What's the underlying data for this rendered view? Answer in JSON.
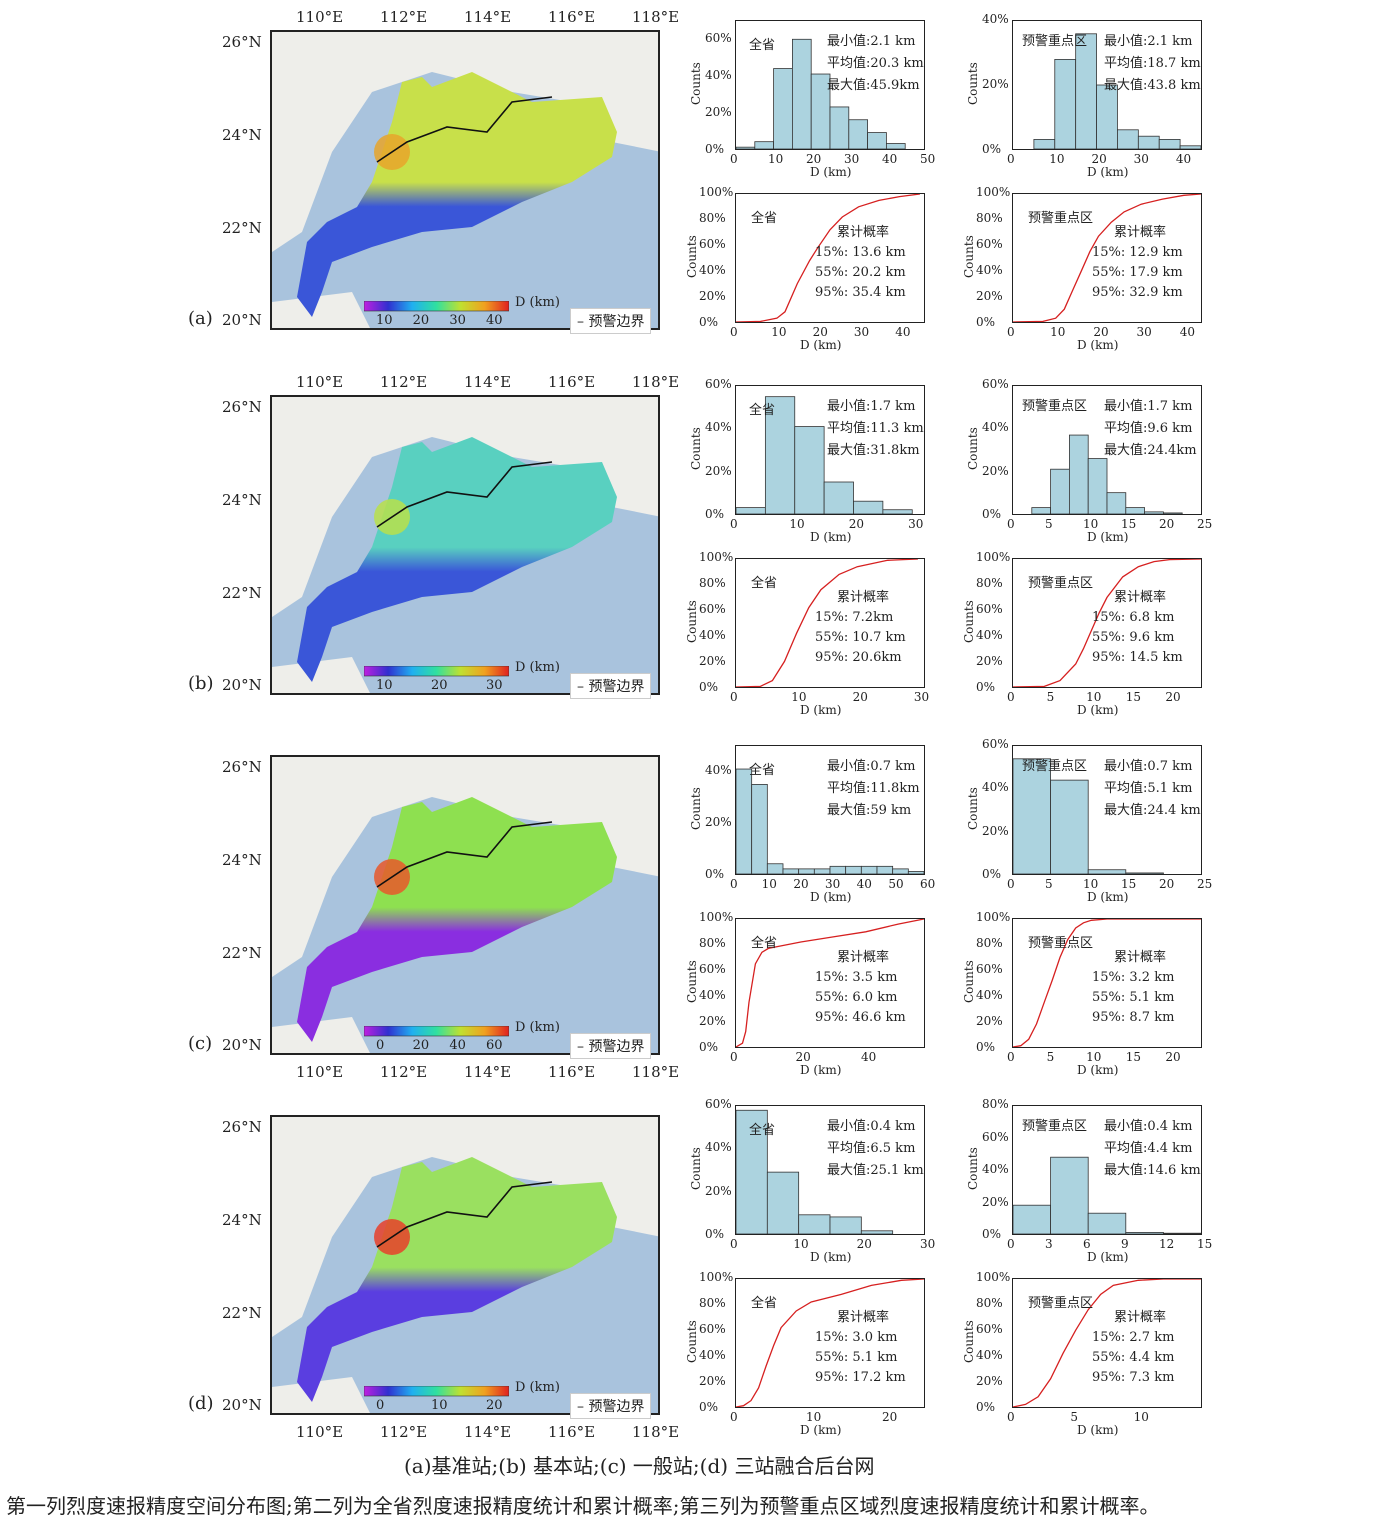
{
  "rows": [
    {
      "panel": "(a)",
      "colorbar": {
        "ticks": [
          "10",
          "20",
          "30",
          "40"
        ],
        "unit": "D (km)",
        "palette": "rainbow"
      },
      "boundary_legend": "预警边界",
      "map_palette": {
        "north": "#c8e04a",
        "south": "#3a56d8",
        "hot": "#e8a52a"
      },
      "province": {
        "title": "全省",
        "stats": [
          "最小值:2.1 km",
          "平均值:20.3 km",
          "最大值:45.9km"
        ],
        "hist": {
          "type": "bar",
          "bins": [
            0,
            5,
            10,
            15,
            20,
            25,
            30,
            35,
            40,
            45
          ],
          "bin_width": 5,
          "values": [
            1,
            4,
            44,
            60,
            41,
            23,
            16,
            9,
            3
          ],
          "ylim": [
            0,
            70
          ],
          "yticks": [
            "0%",
            "20%",
            "40%",
            "60%"
          ],
          "xticks": [
            "0",
            "10",
            "20",
            "30",
            "40",
            "50"
          ],
          "xmax": 50
        },
        "cdf": {
          "type": "line",
          "x": [
            0,
            6,
            10,
            12,
            15,
            18,
            20,
            23,
            26,
            30,
            35,
            40,
            45
          ],
          "y": [
            0,
            0.5,
            3,
            8,
            30,
            48,
            58,
            72,
            82,
            90,
            95,
            98,
            100
          ],
          "xticks": [
            "0",
            "10",
            "20",
            "30",
            "40"
          ],
          "xmax": 46,
          "yticks": [
            "0%",
            "20%",
            "40%",
            "60%",
            "80%",
            "100%"
          ],
          "legend_title": "累计概率",
          "percentiles": [
            "15%: 13.6 km",
            "55%: 20.2 km",
            "95%: 35.4 km"
          ]
        }
      },
      "warning": {
        "title": "预警重点区",
        "stats": [
          "最小值:2.1 km",
          "平均值:18.7 km",
          "最大值:43.8 km"
        ],
        "hist": {
          "type": "bar",
          "bins": [
            0,
            5,
            10,
            15,
            20,
            25,
            30,
            35,
            40,
            45
          ],
          "bin_width": 5,
          "values": [
            0,
            3,
            28,
            36,
            20,
            6,
            4,
            3,
            1
          ],
          "ylim": [
            0,
            40
          ],
          "yticks": [
            "0%",
            "20%",
            "40%"
          ],
          "xticks": [
            "0",
            "10",
            "20",
            "30",
            "40"
          ],
          "xmax": 45
        },
        "cdf": {
          "type": "line",
          "x": [
            0,
            7,
            10,
            12,
            14,
            16,
            18,
            20,
            23,
            26,
            30,
            35,
            40,
            44
          ],
          "y": [
            0,
            0.5,
            3,
            10,
            25,
            40,
            55,
            67,
            78,
            86,
            92,
            96,
            99,
            100
          ],
          "xticks": [
            "0",
            "10",
            "20",
            "30",
            "40"
          ],
          "xmax": 44,
          "yticks": [
            "0%",
            "20%",
            "40%",
            "60%",
            "80%",
            "100%"
          ],
          "legend_title": "累计概率",
          "percentiles": [
            "15%: 12.9 km",
            "55%: 17.9 km",
            "95%: 32.9 km"
          ]
        }
      }
    },
    {
      "panel": "(b)",
      "colorbar": {
        "ticks": [
          "10",
          "20",
          "30"
        ],
        "unit": "D (km)",
        "palette": "rainbow"
      },
      "boundary_legend": "预警边界",
      "map_palette": {
        "north": "#59d0c0",
        "south": "#3a56d8",
        "hot": "#b8e04a"
      },
      "province": {
        "title": "全省",
        "stats": [
          "最小值:1.7 km",
          "平均值:11.3 km",
          "最大值:31.8km"
        ],
        "hist": {
          "type": "bar",
          "bins": [
            0,
            5,
            10,
            15,
            20,
            25,
            30
          ],
          "bin_width": 5,
          "values": [
            3,
            55,
            41,
            15,
            6,
            2
          ],
          "ylim": [
            0,
            60
          ],
          "yticks": [
            "0%",
            "20%",
            "40%",
            "60%"
          ],
          "xticks": [
            "0",
            "10",
            "20",
            "30"
          ],
          "xmax": 32
        },
        "cdf": {
          "type": "line",
          "x": [
            0,
            4,
            6,
            8,
            10,
            12,
            14,
            17,
            20,
            25,
            30
          ],
          "y": [
            0,
            0.5,
            5,
            20,
            42,
            62,
            76,
            88,
            94,
            99,
            100
          ],
          "xticks": [
            "0",
            "10",
            "20",
            "30"
          ],
          "xmax": 31,
          "yticks": [
            "0%",
            "20%",
            "40%",
            "60%",
            "80%",
            "100%"
          ],
          "legend_title": "累计概率",
          "percentiles": [
            "15%: 7.2km",
            "55%: 10.7 km",
            "95%: 20.6km"
          ]
        }
      },
      "warning": {
        "title": "预警重点区",
        "stats": [
          "最小值:1.7 km",
          "平均值:9.6 km",
          "最大值:24.4km"
        ],
        "hist": {
          "type": "bar",
          "bins": [
            0,
            2.5,
            5,
            7.5,
            10,
            12.5,
            15,
            17.5,
            20,
            22.5,
            25
          ],
          "bin_width": 2.5,
          "values": [
            0,
            3,
            21,
            37,
            26,
            10,
            3,
            1,
            0.5,
            0
          ],
          "ylim": [
            0,
            60
          ],
          "yticks": [
            "0%",
            "20%",
            "40%",
            "60%"
          ],
          "xticks": [
            "0",
            "5",
            "10",
            "15",
            "20",
            "25"
          ],
          "xmax": 25
        },
        "cdf": {
          "type": "line",
          "x": [
            0,
            4,
            6,
            8,
            9,
            10,
            11,
            12,
            14,
            16,
            18,
            20,
            24
          ],
          "y": [
            0,
            0.5,
            5,
            18,
            30,
            44,
            58,
            70,
            86,
            94,
            98,
            99.5,
            100
          ],
          "xticks": [
            "0",
            "5",
            "10",
            "15",
            "20"
          ],
          "xmax": 24,
          "yticks": [
            "0%",
            "20%",
            "40%",
            "60%",
            "80%",
            "100%"
          ],
          "legend_title": "累计概率",
          "percentiles": [
            "15%: 6.8 km",
            "55%: 9.6 km",
            "95%: 14.5 km"
          ]
        }
      }
    },
    {
      "panel": "(c)",
      "colorbar": {
        "ticks": [
          "0",
          "20",
          "40",
          "60"
        ],
        "unit": "D (km)",
        "palette": "rainbow"
      },
      "boundary_legend": "预警边界",
      "map_palette": {
        "north": "#8ee050",
        "south": "#8a2ee0",
        "hot": "#e8582a"
      },
      "province": {
        "title": "全省",
        "stats": [
          "最小值:0.7 km",
          "平均值:11.8km",
          "最大值:59 km"
        ],
        "hist": {
          "type": "bar",
          "bins": [
            0,
            5,
            10,
            15,
            20,
            25,
            30,
            35,
            40,
            45,
            50,
            55,
            60
          ],
          "bin_width": 5,
          "values": [
            41,
            35,
            4,
            2,
            2,
            2,
            3,
            3,
            3,
            3,
            2,
            1
          ],
          "ylim": [
            0,
            50
          ],
          "yticks": [
            "0%",
            "20%",
            "40%"
          ],
          "xticks": [
            "0",
            "10",
            "20",
            "30",
            "40",
            "50",
            "60"
          ],
          "xmax": 60
        },
        "cdf": {
          "type": "line",
          "x": [
            0,
            2,
            3,
            4,
            6,
            8,
            10,
            20,
            30,
            40,
            50,
            58
          ],
          "y": [
            0,
            3,
            12,
            35,
            65,
            74,
            77,
            82,
            86,
            90,
            96,
            100
          ],
          "xticks": [
            "0",
            "20",
            "40"
          ],
          "xmax": 58,
          "yticks": [
            "0%",
            "20%",
            "40%",
            "60%",
            "80%",
            "100%"
          ],
          "legend_title": "累计概率",
          "percentiles": [
            "15%: 3.5 km",
            "55%: 6.0 km",
            "95%: 46.6 km"
          ]
        }
      },
      "warning": {
        "title": "预警重点区",
        "stats": [
          "最小值:0.7 km",
          "平均值:5.1 km",
          "最大值:24.4 km"
        ],
        "hist": {
          "type": "bar",
          "bins": [
            0,
            5,
            10,
            15,
            20,
            25
          ],
          "bin_width": 5,
          "values": [
            54,
            44,
            2,
            0.5,
            0
          ],
          "ylim": [
            0,
            60
          ],
          "yticks": [
            "0%",
            "20%",
            "40%",
            "60%"
          ],
          "xticks": [
            "0",
            "5",
            "10",
            "15",
            "20",
            "25"
          ],
          "xmax": 25
        },
        "cdf": {
          "type": "line",
          "x": [
            0,
            1,
            2,
            3,
            4,
            5,
            6,
            7,
            8,
            9,
            10,
            12,
            15,
            24
          ],
          "y": [
            0,
            1,
            6,
            18,
            35,
            52,
            70,
            84,
            93,
            97,
            99,
            100,
            100,
            100
          ],
          "xticks": [
            "0",
            "5",
            "10",
            "15",
            "20"
          ],
          "xmax": 24,
          "yticks": [
            "0%",
            "20%",
            "40%",
            "60%",
            "80%",
            "100%"
          ],
          "legend_title": "累计概率",
          "percentiles": [
            "15%: 3.2 km",
            "55%: 5.1 km",
            "95%: 8.7 km"
          ]
        }
      }
    },
    {
      "panel": "(d)",
      "colorbar": {
        "ticks": [
          "0",
          "10",
          "20"
        ],
        "unit": "D (km)",
        "palette": "rainbow"
      },
      "boundary_legend": "预警边界",
      "map_palette": {
        "north": "#9ae060",
        "south": "#5a3ee0",
        "hot": "#e8402a"
      },
      "province": {
        "title": "全省",
        "stats": [
          "最小值:0.4 km",
          "平均值:6.5 km",
          "最大值:25.1 km"
        ],
        "hist": {
          "type": "bar",
          "bins": [
            0,
            5,
            10,
            15,
            20,
            25,
            30
          ],
          "bin_width": 5,
          "values": [
            58,
            29,
            9,
            8,
            1.5,
            0
          ],
          "ylim": [
            0,
            60
          ],
          "yticks": [
            "0%",
            "20%",
            "40%",
            "60%"
          ],
          "xticks": [
            "0",
            "10",
            "20",
            "30"
          ],
          "xmax": 30
        },
        "cdf": {
          "type": "line",
          "x": [
            0,
            1,
            2,
            3,
            4,
            5,
            6,
            8,
            10,
            14,
            18,
            22,
            25
          ],
          "y": [
            0,
            1,
            5,
            15,
            32,
            48,
            62,
            75,
            82,
            88,
            95,
            99,
            100
          ],
          "xticks": [
            "0",
            "10",
            "20"
          ],
          "xmax": 25,
          "yticks": [
            "0%",
            "20%",
            "40%",
            "60%",
            "80%",
            "100%"
          ],
          "legend_title": "累计概率",
          "percentiles": [
            "15%: 3.0 km",
            "55%: 5.1 km",
            "95%: 17.2 km"
          ]
        }
      },
      "warning": {
        "title": "预警重点区",
        "stats": [
          "最小值:0.4 km",
          "平均值:4.4 km",
          "最大值:14.6 km"
        ],
        "hist": {
          "type": "bar",
          "bins": [
            0,
            3,
            6,
            9,
            12,
            15
          ],
          "bin_width": 3,
          "values": [
            18,
            48,
            13,
            1,
            0.5
          ],
          "ylim": [
            0,
            80
          ],
          "yticks": [
            "0%",
            "20%",
            "40%",
            "60%",
            "80%"
          ],
          "xticks": [
            "0",
            "3",
            "6",
            "9",
            "12",
            "15"
          ],
          "xmax": 15
        },
        "cdf": {
          "type": "line",
          "x": [
            0,
            1,
            2,
            3,
            4,
            5,
            6,
            7,
            8,
            10,
            12,
            15
          ],
          "y": [
            0,
            2,
            8,
            22,
            42,
            60,
            76,
            88,
            95,
            99,
            100,
            100
          ],
          "xticks": [
            "0",
            "5",
            "10"
          ],
          "xmax": 15,
          "yticks": [
            "0%",
            "20%",
            "40%",
            "60%",
            "80%",
            "100%"
          ],
          "legend_title": "累计概率",
          "percentiles": [
            "15%: 2.7 km",
            "55%: 4.4 km",
            "95%: 7.3 km"
          ]
        }
      }
    }
  ],
  "axis": {
    "ylabel": "Counts",
    "xlabel": "D (km)",
    "lat_ticks": [
      "26°N",
      "24°N",
      "22°N",
      "20°N"
    ],
    "lon_ticks": [
      "110°E",
      "112°E",
      "114°E",
      "116°E",
      "118°E"
    ]
  },
  "caption": "(a)基准站;(b) 基本站;(c) 一般站;(d) 三站融合后台网",
  "note": "第一列烈度速报精度空间分布图;第二列为全省烈度速报精度统计和累计概率;第三列为预警重点区域烈度速报精度统计和累计概率。",
  "colors": {
    "bar_fill": "#acd3df",
    "cdf_line": "#d62020",
    "ocean": "#a9c3dd",
    "land": "#eeeeea",
    "boundary": "#111111"
  }
}
